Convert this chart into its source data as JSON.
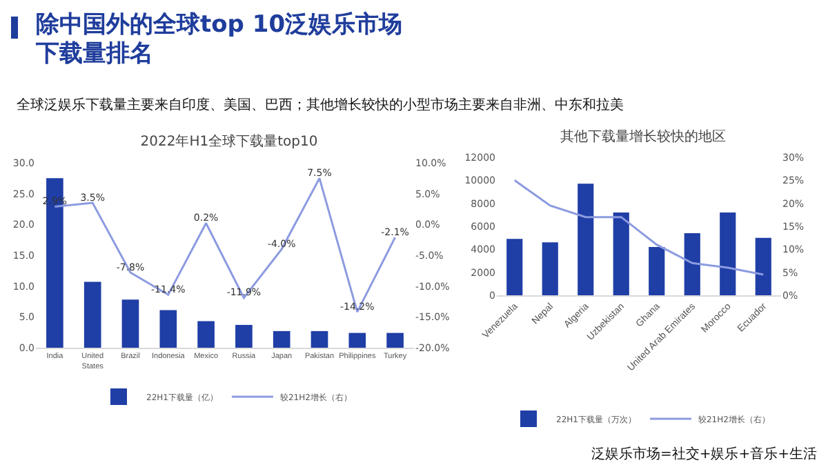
{
  "chart_data": [
    {
      "type": "bar",
      "title": "2022年H1全球下载量top10",
      "annotations": [
        "除中国外的全球top 10泛娱乐市场下载量排名",
        "全球泛娱乐下载量主要来自印度、美国、巴西；其他增长较快的小型市场主要来自非洲、中东和拉美"
      ],
      "categories": [
        "India",
        "United States",
        "Brazil",
        "Indonesia",
        "Mexico",
        "Russia",
        "Japan",
        "Pakistan",
        "Philippines",
        "Turkey"
      ],
      "series": [
        {
          "name": "22H1下载量（亿）",
          "color": "#1f3ea6",
          "values": [
            27.5,
            10.7,
            7.8,
            6.1,
            4.3,
            3.7,
            2.7,
            2.7,
            2.4,
            2.4
          ]
        },
        {
          "name": "较21H2增长（右）",
          "type": "line",
          "axis": "y2",
          "color": "#8c9be0",
          "values": [
            2.9,
            3.5,
            -7.8,
            -11.4,
            0.2,
            -11.9,
            -4.0,
            7.5,
            -14.2,
            -2.1
          ],
          "value_labels": [
            "2.9%",
            "3.5%",
            "-7.8%",
            "-11.4%",
            "0.2%",
            "-11.9%",
            "-4.0%",
            "7.5%",
            "-14.2%",
            "-2.1%"
          ]
        }
      ],
      "ylim": [
        0,
        30
      ],
      "yticks": [
        {
          "value": 0,
          "label": "0.0"
        },
        {
          "value": 5,
          "label": "5.0"
        },
        {
          "value": 10,
          "label": "10.0"
        },
        {
          "value": 15,
          "label": "15.0"
        },
        {
          "value": 20,
          "label": "20.0"
        },
        {
          "value": 25,
          "label": "25.0"
        },
        {
          "value": 30,
          "label": "30.0"
        }
      ],
      "y2lim": [
        -20,
        10
      ],
      "y2ticks": [
        {
          "value": -20,
          "label": "-20.0%"
        },
        {
          "value": -15,
          "label": "-15.0%"
        },
        {
          "value": -10,
          "label": "-10.0%"
        },
        {
          "value": -5,
          "label": "-5.0%"
        },
        {
          "value": 0,
          "label": "0.0%"
        },
        {
          "value": 5,
          "label": "5.0%"
        },
        {
          "value": 10,
          "label": "10.0%"
        }
      ],
      "legend": "bottom",
      "marker": "none"
    },
    {
      "type": "bar",
      "title": "其他下载量增长较快的地区",
      "annotations": [
        "泛娱乐市场=社交+娱乐+音乐+生活"
      ],
      "categories": [
        "Venezuela",
        "Nepal",
        "Algeria",
        "Uzbekistan",
        "Ghana",
        "United Arab Emirates",
        "Morocco",
        "Ecuador"
      ],
      "series": [
        {
          "name": "22H1下载量（万次）",
          "color": "#1f3ea6",
          "values": [
            4900,
            4600,
            9700,
            7200,
            4200,
            5400,
            7200,
            5000
          ]
        },
        {
          "name": "较21H2增长（右）",
          "type": "line",
          "axis": "y2",
          "color": "#8c9be0",
          "values": [
            25,
            19.5,
            17,
            17,
            11,
            7,
            6,
            4.5
          ]
        }
      ],
      "ylim": [
        0,
        12000
      ],
      "yticks": [
        0,
        2000,
        4000,
        6000,
        8000,
        10000,
        12000
      ],
      "y2lim": [
        0,
        30
      ],
      "y2ticks": [
        {
          "value": 0,
          "label": "0%"
        },
        {
          "value": 5,
          "label": "5%"
        },
        {
          "value": 10,
          "label": "10%"
        },
        {
          "value": 15,
          "label": "15%"
        },
        {
          "value": 20,
          "label": "20%"
        },
        {
          "value": 25,
          "label": "25%"
        },
        {
          "value": 30,
          "label": "30%"
        }
      ],
      "legend": "bottom",
      "marker": "none"
    }
  ]
}
